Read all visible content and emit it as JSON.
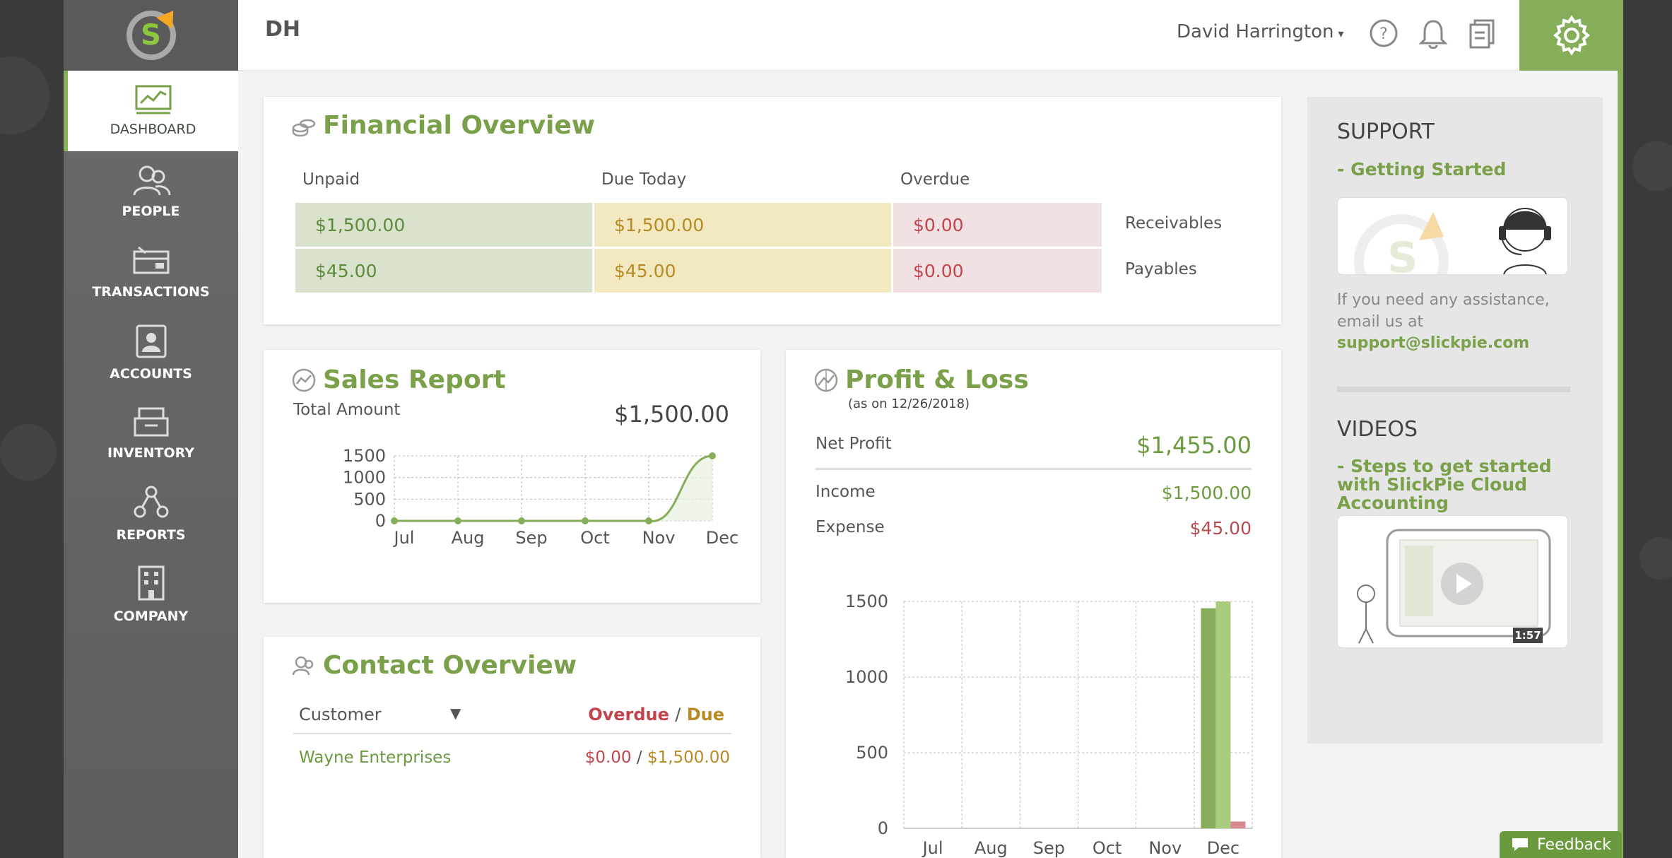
{
  "app": {
    "company_initials": "DH",
    "user_name": "David Harrington",
    "colors": {
      "brand_green": "#86ae5a",
      "accent_orange": "#f6a623",
      "overdue_red": "#c2454e",
      "due_gold": "#b68a24"
    }
  },
  "sidebar": {
    "items": [
      {
        "label": "DASHBOARD",
        "icon": "dashboard-chart-icon",
        "active": true
      },
      {
        "label": "PEOPLE",
        "icon": "people-icon"
      },
      {
        "label": "TRANSACTIONS",
        "icon": "transactions-icon"
      },
      {
        "label": "ACCOUNTS",
        "icon": "accounts-icon"
      },
      {
        "label": "INVENTORY",
        "icon": "inventory-icon"
      },
      {
        "label": "REPORTS",
        "icon": "reports-icon"
      },
      {
        "label": "COMPANY",
        "icon": "company-building-icon"
      }
    ]
  },
  "financial_overview": {
    "title": "Financial Overview",
    "headers": [
      "Unpaid",
      "Due Today",
      "Overdue"
    ],
    "rows": [
      {
        "unpaid": "$1,500.00",
        "due_today": "$1,500.00",
        "overdue": "$0.00",
        "label": "Receivables"
      },
      {
        "unpaid": "$45.00",
        "due_today": "$45.00",
        "overdue": "$0.00",
        "label": "Payables"
      }
    ]
  },
  "sales_report": {
    "title": "Sales Report",
    "total_label": "Total Amount",
    "total_value": "$1,500.00"
  },
  "profit_loss": {
    "title": "Profit & Loss",
    "as_on": "(as on 12/26/2018)",
    "net_profit_label": "Net Profit",
    "net_profit_value": "$1,455.00",
    "income_label": "Income",
    "income_value": "$1,500.00",
    "expense_label": "Expense",
    "expense_value": "$45.00"
  },
  "contact_overview": {
    "title": "Contact Overview",
    "filter_label": "Customer",
    "overdue_label": "Overdue",
    "slash": "/",
    "due_label": "Due",
    "rows": [
      {
        "name": "Wayne Enterprises",
        "overdue": "$0.00",
        "due": "$1,500.00"
      }
    ]
  },
  "support": {
    "heading": "SUPPORT",
    "getting_started": "- Getting Started",
    "assist_text": "If you need any assistance, email us at",
    "email": "support@slickpie.com",
    "videos_heading": "VIDEOS",
    "video_link": "- Steps to get started with SlickPie Cloud Accounting",
    "video_duration": "1:57"
  },
  "feedback_label": "Feedback",
  "chart_data": [
    {
      "type": "line",
      "categories": [
        "Jul",
        "Aug",
        "Sep",
        "Oct",
        "Nov",
        "Dec"
      ],
      "values": [
        0,
        0,
        0,
        0,
        0,
        1500
      ],
      "yticks": [
        0,
        500,
        1000,
        1500
      ],
      "ylim": [
        0,
        1500
      ],
      "grid": true
    },
    {
      "type": "bar",
      "categories": [
        "Jul",
        "Aug",
        "Sep",
        "Oct",
        "Nov",
        "Dec"
      ],
      "series": [
        {
          "values": [
            0,
            0,
            0,
            0,
            0,
            1455
          ],
          "color": "#86ae5a"
        },
        {
          "values": [
            0,
            0,
            0,
            0,
            0,
            1500
          ],
          "color": "#a9cc7e"
        },
        {
          "values": [
            0,
            0,
            0,
            0,
            0,
            45
          ],
          "color": "#d98a8f"
        }
      ],
      "yticks": [
        0,
        500,
        1000,
        1500
      ],
      "ylim": [
        0,
        1500
      ],
      "grid": true
    }
  ]
}
